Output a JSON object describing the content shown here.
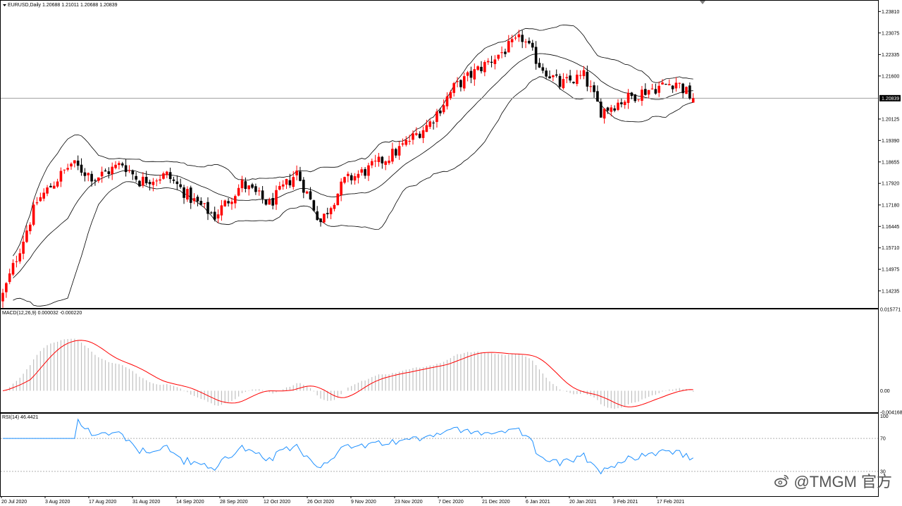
{
  "main": {
    "title": "EURUSD,Daily  1.20688 1.21011 1.20688 1.20839",
    "price_labels": [
      "1.23810",
      "1.23075",
      "1.22335",
      "1.21600",
      "1.20125",
      "1.19390",
      "1.18655",
      "1.17920",
      "1.17180",
      "1.16445",
      "1.15710",
      "1.14975",
      "1.14235"
    ],
    "current_price": "1.20839"
  },
  "macd": {
    "title": "MACD(12,26,9) 0.000032 -0.000220",
    "labels": [
      "0.015771",
      "0.00",
      "-0.004168"
    ]
  },
  "rsi": {
    "title": "RSI(14) 46.4421",
    "labels": [
      "100",
      "70",
      "30"
    ]
  },
  "dates": [
    "20 Jul 2020",
    "3 Aug 2020",
    "17 Aug 2020",
    "31 Aug 2020",
    "14 Sep 2020",
    "28 Sep 2020",
    "12 Oct 2020",
    "26 Oct 2020",
    "9 Nov 2020",
    "23 Nov 2020",
    "7 Dec 2020",
    "21 Dec 2020",
    "6 Jan 2021",
    "20 Jan 2021",
    "3 Feb 2021",
    "17 Feb 2021"
  ],
  "watermark": {
    "text": "@TMGM 官方",
    "icon": "weibo-logo-icon"
  },
  "colors": {
    "bull": "#ff0000",
    "bear": "#000000",
    "signal": "#ff0000",
    "rsi_line": "#1e90ff",
    "bands": "#000000",
    "histogram": "#c0c0c0"
  },
  "chart_data": {
    "type": "candlestick",
    "symbol": "EURUSD",
    "timeframe": "Daily",
    "ohlc_last": {
      "open": 1.20688,
      "high": 1.21011,
      "low": 1.20688,
      "close": 1.20839
    },
    "ylim": [
      1.1365,
      1.2418
    ],
    "close_trend": [
      [
        0,
        1.141
      ],
      [
        10,
        1.173
      ],
      [
        20,
        1.186
      ],
      [
        27,
        1.181
      ],
      [
        35,
        1.186
      ],
      [
        40,
        1.18
      ],
      [
        48,
        1.182
      ],
      [
        55,
        1.174
      ],
      [
        62,
        1.168
      ],
      [
        70,
        1.179
      ],
      [
        78,
        1.172
      ],
      [
        86,
        1.183
      ],
      [
        93,
        1.166
      ],
      [
        100,
        1.18
      ],
      [
        107,
        1.184
      ],
      [
        115,
        1.19
      ],
      [
        125,
        1.2
      ],
      [
        132,
        1.212
      ],
      [
        140,
        1.219
      ],
      [
        147,
        1.225
      ],
      [
        152,
        1.229
      ],
      [
        157,
        1.22
      ],
      [
        163,
        1.213
      ],
      [
        170,
        1.216
      ],
      [
        175,
        1.204
      ],
      [
        182,
        1.208
      ],
      [
        188,
        1.211
      ],
      [
        197,
        1.214
      ],
      [
        202,
        1.208
      ]
    ],
    "indicators": {
      "bollinger": "20,2",
      "macd": {
        "params": "12,26,9",
        "main": 3.2e-05,
        "signal": -0.00022,
        "ylim": [
          -0.004168,
          0.015771
        ]
      },
      "rsi": {
        "period": 14,
        "value": 46.4421,
        "levels": [
          70,
          30
        ],
        "ylim": [
          0,
          100
        ]
      }
    }
  }
}
